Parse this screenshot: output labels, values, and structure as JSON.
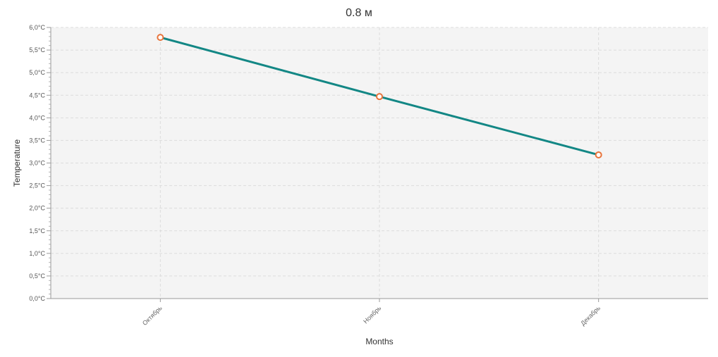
{
  "chart_data": {
    "type": "line",
    "title": "0.8 м",
    "xlabel": "Months",
    "ylabel": "Temperature",
    "categories": [
      "Октябрь",
      "Ноябрь",
      "Декабрь"
    ],
    "series": [
      {
        "name": "Temperature",
        "values": [
          5.78,
          4.47,
          3.18
        ]
      }
    ],
    "ylim": [
      0,
      6
    ],
    "ytick_step": 0.5,
    "ytick_labels": [
      "0,0°C",
      "0,5°C",
      "1,0°C",
      "1,5°C",
      "2,0°C",
      "2,5°C",
      "3,0°C",
      "3,5°C",
      "4,0°C",
      "4,5°C",
      "5,0°C",
      "5,5°C",
      "6,0°C"
    ],
    "grid": true,
    "legend": "none",
    "colors": {
      "line": "#138785",
      "marker_stroke": "#e8743b",
      "marker_fill": "#ffffff",
      "plot_bg": "#f4f4f4",
      "grid": "#dcdcdc"
    }
  }
}
